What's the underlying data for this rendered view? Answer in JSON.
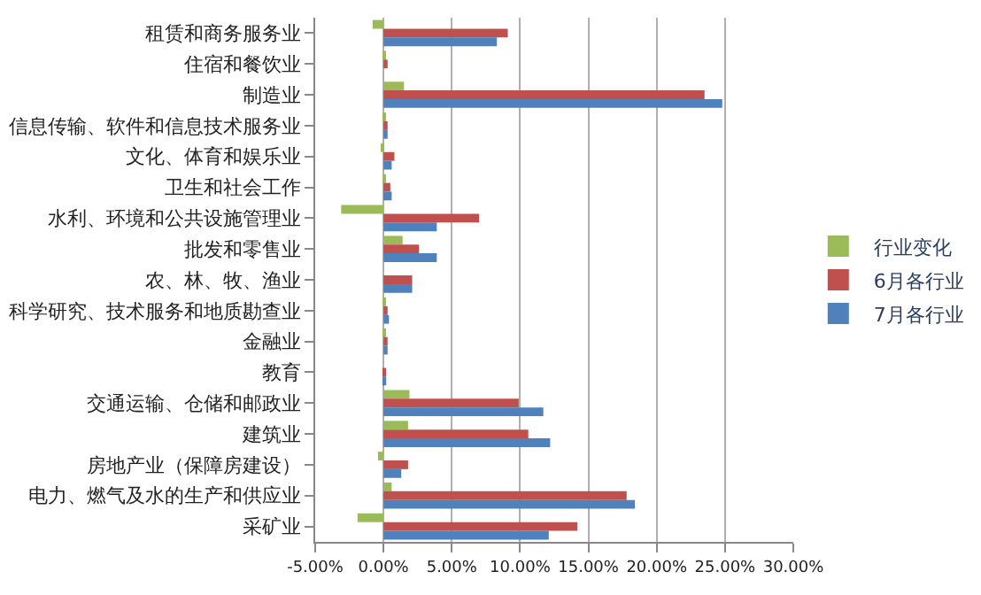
{
  "chart_data": {
    "type": "bar",
    "orientation": "horizontal",
    "categories": [
      "租赁和商务服务业",
      "住宿和餐饮业",
      "制造业",
      "信息传输、软件和信息技术服务业",
      "文化、体育和娱乐业",
      "卫生和社会工作",
      "水利、环境和公共设施管理业",
      "批发和零售业",
      "农、林、牧、渔业",
      "科学研究、技术服务和地质勘查业",
      "金融业",
      "教育",
      "交通运输、仓储和邮政业",
      "建筑业",
      "房地产业（保障房建设）",
      "电力、燃气及水的生产和供应业",
      "采矿业"
    ],
    "series": [
      {
        "name": "行业变化",
        "color": "#9bbb59",
        "values": [
          -0.8,
          0.1,
          1.5,
          0.1,
          -0.1,
          0.1,
          -3.1,
          1.4,
          0.0,
          0.1,
          0.1,
          0.0,
          1.9,
          1.8,
          -0.4,
          0.6,
          -1.9
        ]
      },
      {
        "name": "6月各行业",
        "color": "#c0504d",
        "values": [
          9.1,
          0.3,
          23.5,
          0.3,
          0.8,
          0.5,
          7.0,
          2.6,
          2.1,
          0.3,
          0.3,
          0.2,
          9.9,
          10.6,
          1.8,
          17.8,
          14.2
        ]
      },
      {
        "name": "7月各行业",
        "color": "#4f81bd",
        "values": [
          8.3,
          0.0,
          24.8,
          0.3,
          0.6,
          0.6,
          3.9,
          3.9,
          2.1,
          0.4,
          0.3,
          0.2,
          11.7,
          12.2,
          1.3,
          18.4,
          12.1
        ]
      }
    ],
    "xlim": [
      -5,
      30
    ],
    "xticks": [
      {
        "value": -5,
        "label": "-5.00%"
      },
      {
        "value": 0,
        "label": "0.00%"
      },
      {
        "value": 5,
        "label": "5.00%"
      },
      {
        "value": 10,
        "label": "10.00%"
      },
      {
        "value": 15,
        "label": "15.00%"
      },
      {
        "value": 20,
        "label": "20.00%"
      },
      {
        "value": 25,
        "label": "25.00%"
      },
      {
        "value": 30,
        "label": "30.00%"
      }
    ],
    "grid": "x",
    "legend": "right"
  }
}
